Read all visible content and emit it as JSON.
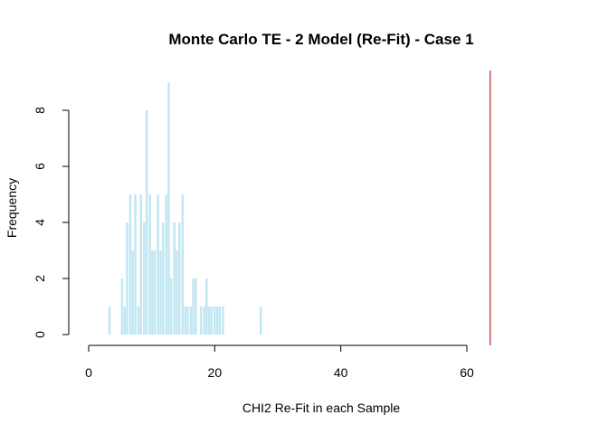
{
  "chart_data": {
    "type": "bar",
    "title": "Monte Carlo TE - 2 Model (Re-Fit) - Case 1",
    "xlabel": "CHI2 Re-Fit in each Sample",
    "ylabel": "Frequency",
    "xlim": [
      0,
      65
    ],
    "ylim": [
      0,
      9.3
    ],
    "x_ticks": [
      0,
      20,
      40,
      60
    ],
    "y_ticks": [
      0,
      2,
      4,
      6,
      8
    ],
    "bar_color": "#c2e6f2",
    "bar_width": 0.35,
    "grid": false,
    "x": [
      3.3,
      5.3,
      5.7,
      6.1,
      6.6,
      7.0,
      7.4,
      7.9,
      8.3,
      8.8,
      9.2,
      9.7,
      10.1,
      10.5,
      11.0,
      11.4,
      11.8,
      12.3,
      12.7,
      13.1,
      13.6,
      14.0,
      14.4,
      14.9,
      15.3,
      15.7,
      16.2,
      16.6,
      17.0,
      17.8,
      18.3,
      18.7,
      19.1,
      19.5,
      20.0,
      20.4,
      20.8,
      21.3,
      27.3
    ],
    "values": [
      1,
      2,
      1,
      4,
      5,
      3,
      5,
      1,
      5,
      4,
      8,
      5,
      3,
      3,
      5,
      3,
      4,
      5,
      9,
      2,
      4,
      3,
      4,
      5,
      1,
      1,
      1,
      2,
      2,
      1,
      1,
      2,
      1,
      1,
      1,
      1,
      1,
      1,
      1
    ],
    "reference_line": {
      "x": 63.7,
      "color": "#b22222"
    }
  }
}
